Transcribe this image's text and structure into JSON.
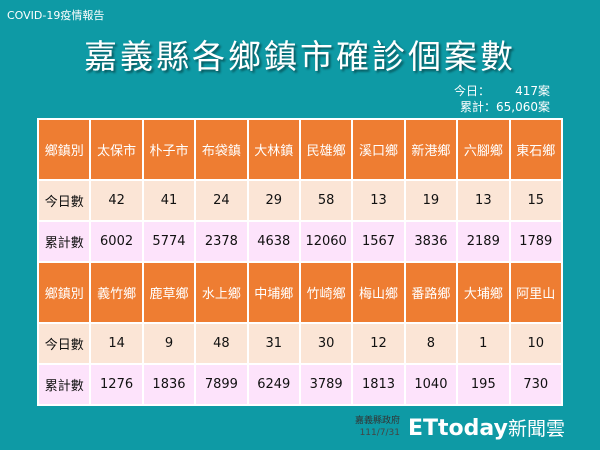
{
  "header": {
    "subtitle": "COVID-19疫情報告",
    "title": "嘉義縣各鄉鎮市確診個案數"
  },
  "summary": {
    "today_label": "今日：",
    "today_value": "417案",
    "total_label": "累計：",
    "total_value": "65,060案"
  },
  "tables": [
    {
      "header": [
        "鄉鎮別",
        "太保市",
        "朴子市",
        "布袋鎮",
        "大林鎮",
        "民雄鄉",
        "溪口鄉",
        "新港鄉",
        "六腳鄉",
        "東石鄉"
      ],
      "today": [
        "今日數",
        "42",
        "41",
        "24",
        "29",
        "58",
        "13",
        "19",
        "13",
        "15"
      ],
      "cumulative": [
        "累計數",
        "6002",
        "5774",
        "2378",
        "4638",
        "12060",
        "1567",
        "3836",
        "2189",
        "1789"
      ]
    },
    {
      "header": [
        "鄉鎮別",
        "義竹鄉",
        "鹿草鄉",
        "水上鄉",
        "中埔鄉",
        "竹崎鄉",
        "梅山鄉",
        "番路鄉",
        "大埔鄉",
        "阿里山"
      ],
      "today": [
        "今日數",
        "14",
        "9",
        "48",
        "31",
        "30",
        "12",
        "8",
        "1",
        "10"
      ],
      "cumulative": [
        "累計數",
        "1276",
        "1836",
        "7899",
        "6249",
        "3789",
        "1813",
        "1040",
        "195",
        "730"
      ]
    }
  ],
  "watermark": {
    "logo": "ETtoday",
    "logo_cn": "新聞雲",
    "source": "嘉義縣政府",
    "date": "111/7/31"
  },
  "colors": {
    "background": "#0e9aa5",
    "header_row": "#ee7d32",
    "today_row": "#fbe5d6",
    "cumulative_row": "#fde3fb"
  }
}
